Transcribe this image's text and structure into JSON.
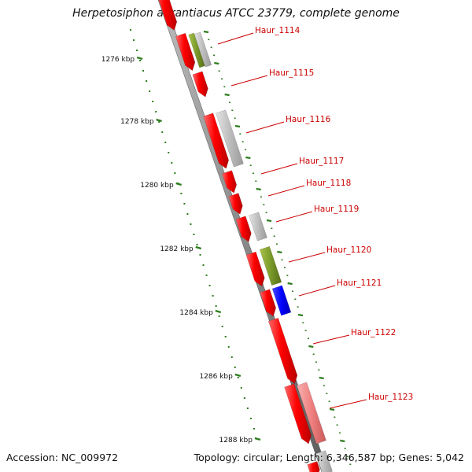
{
  "title": "Herpetosiphon aurantiacus ATCC 23779, complete genome",
  "footer": {
    "accession": "Accession: NC_009972",
    "summary": "Topology: circular; Length: 6,346,587 bp; Genes: 5,042"
  },
  "colors": {
    "backbone": "#8a8a8a",
    "cds": "#ff0000",
    "gray": "#bdbdbd",
    "olive": "#7a9a2a",
    "blue": "#0000ff",
    "pink": "#f08080",
    "tick": "#2e7d1e",
    "label": "#cc0000"
  },
  "ticks": [
    "1276 kbp",
    "1278 kbp",
    "1280 kbp",
    "1282 kbp",
    "1284 kbp",
    "1286 kbp",
    "1288 kbp"
  ],
  "genes": [
    "Haur_1114",
    "Haur_1115",
    "Haur_1116",
    "Haur_1117",
    "Haur_1118",
    "Haur_1119",
    "Haur_1120",
    "Haur_1121",
    "Haur_1122",
    "Haur_1123"
  ]
}
